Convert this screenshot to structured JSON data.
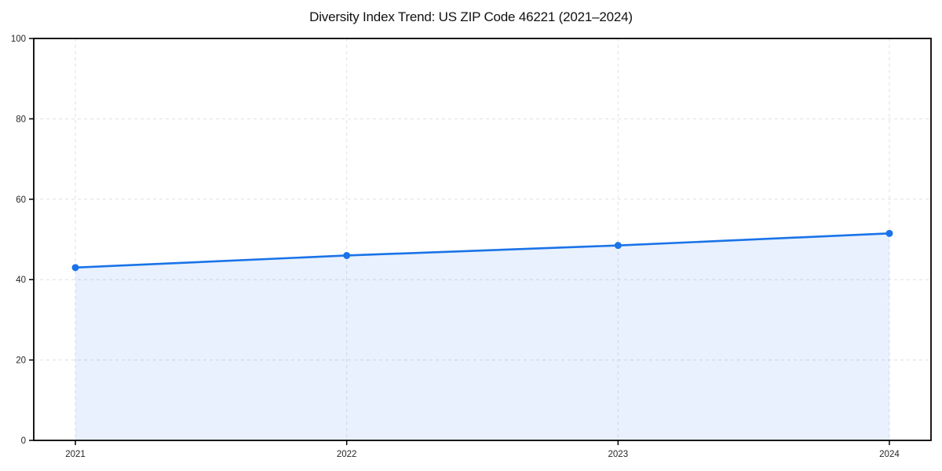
{
  "chart_data": {
    "type": "line",
    "title": "Diversity Index Trend: US ZIP Code 46221 (2021–2024)",
    "categories": [
      "2021",
      "2022",
      "2023",
      "2024"
    ],
    "series": [
      {
        "name": "Diversity Index",
        "values": [
          43,
          46,
          48.5,
          51.5
        ]
      }
    ],
    "xlabel": "",
    "ylabel": "",
    "ylim": [
      0,
      100
    ],
    "yticks": [
      0,
      20,
      40,
      60,
      80,
      100
    ],
    "grid": true,
    "grid_style": "dashed",
    "legend": "none",
    "area_fill": true,
    "marker": "circle",
    "colors": {
      "line": "#1a73e8",
      "marker": "#1a73e8",
      "fill": "rgba(26,115,232,0.10)",
      "grid": "#e0e0e0",
      "axis": "#000000",
      "tick_text": "#262626",
      "background": "#ffffff"
    }
  }
}
